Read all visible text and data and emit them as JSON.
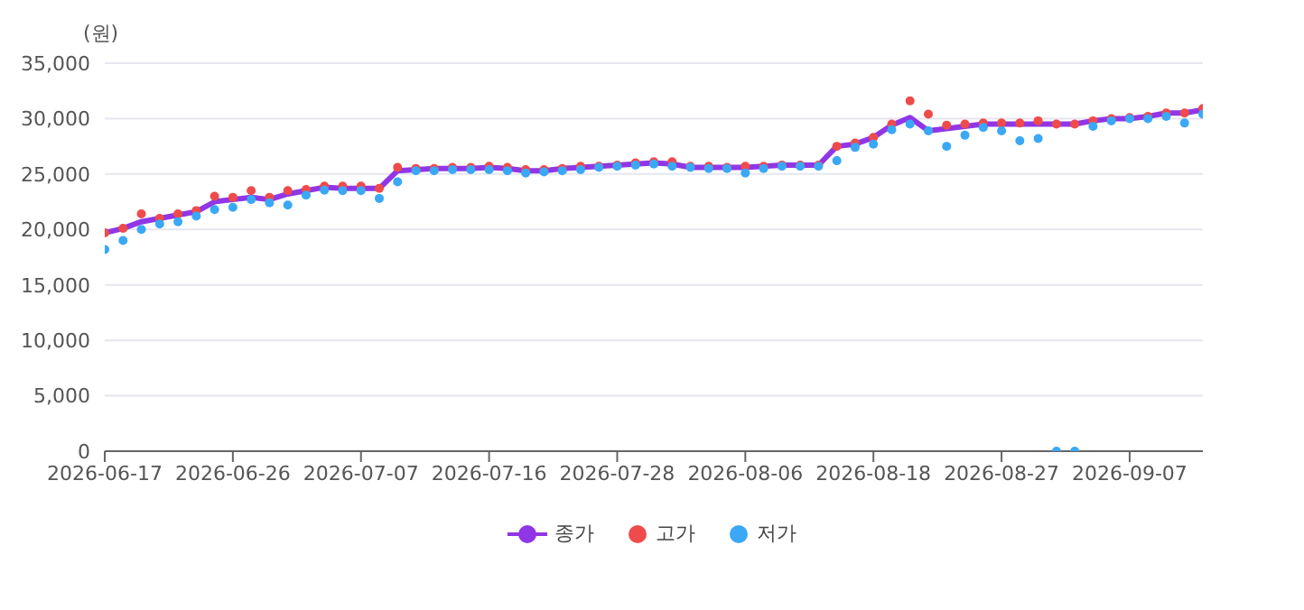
{
  "chart_data": {
    "type": "line",
    "ylabel": "(원)",
    "categories": [
      "2026-06-17",
      null,
      null,
      null,
      null,
      null,
      null,
      "2026-06-26",
      null,
      null,
      null,
      null,
      null,
      null,
      "2026-07-07",
      null,
      null,
      null,
      null,
      null,
      null,
      "2026-07-16",
      null,
      null,
      null,
      null,
      null,
      null,
      "2026-07-28",
      null,
      null,
      null,
      null,
      null,
      null,
      "2026-08-06",
      null,
      null,
      null,
      null,
      null,
      null,
      "2026-08-18",
      null,
      null,
      null,
      null,
      null,
      null,
      "2026-08-27",
      null,
      null,
      null,
      null,
      null,
      null,
      "2026-09-07",
      null,
      null,
      null,
      null
    ],
    "series": [
      {
        "name": "종가",
        "color": "#9036e6",
        "marker": "none",
        "values": [
          19700,
          20100,
          20700,
          21000,
          21300,
          21600,
          22500,
          22700,
          22900,
          22700,
          23200,
          23500,
          23800,
          23700,
          23700,
          23700,
          25300,
          25400,
          25500,
          25500,
          25500,
          25600,
          25500,
          25300,
          25300,
          25500,
          25600,
          25700,
          25800,
          25900,
          26000,
          25900,
          25600,
          25600,
          25600,
          25600,
          25700,
          25800,
          25800,
          25800,
          27500,
          27700,
          28300,
          29400,
          30100,
          28900,
          29100,
          29300,
          29500,
          29500,
          29500,
          29500,
          29500,
          29500,
          29800,
          30000,
          30000,
          30200,
          30500,
          30500,
          30800
        ]
      },
      {
        "name": "고가",
        "type": "scatter",
        "marker": "circle",
        "color": "#ef4b4b",
        "values": [
          19700,
          20100,
          21400,
          21000,
          21400,
          21700,
          23000,
          22900,
          23500,
          22900,
          23500,
          23600,
          23900,
          23900,
          23900,
          23700,
          25600,
          25500,
          25500,
          25600,
          25600,
          25700,
          25600,
          25400,
          25400,
          25500,
          25700,
          25700,
          25800,
          26000,
          26100,
          26100,
          25700,
          25700,
          25600,
          25700,
          25700,
          25800,
          25800,
          25800,
          27500,
          27800,
          28300,
          29500,
          31600,
          30400,
          29400,
          29500,
          29600,
          29600,
          29600,
          29800,
          29500,
          29500,
          29800,
          30000,
          30100,
          30200,
          30500,
          30500,
          30900
        ]
      },
      {
        "name": "저가",
        "type": "scatter",
        "marker": "circle",
        "color": "#3aa8f5",
        "values": [
          18200,
          19000,
          20000,
          20500,
          20700,
          21200,
          21800,
          22000,
          22700,
          22400,
          22200,
          23100,
          23550,
          23500,
          23500,
          22800,
          24300,
          25300,
          25300,
          25400,
          25400,
          25400,
          25300,
          25100,
          25200,
          25300,
          25400,
          25600,
          25700,
          25800,
          25900,
          25700,
          25600,
          25500,
          25500,
          25100,
          25500,
          25700,
          25700,
          25700,
          26200,
          27400,
          27700,
          29000,
          29500,
          28900,
          27500,
          28500,
          29200,
          28900,
          28000,
          28200,
          0,
          0,
          29300,
          29800,
          30000,
          30000,
          30200,
          29600,
          30400
        ]
      }
    ],
    "ylim": [
      0,
      35000
    ],
    "yticks": [
      {
        "value": 0,
        "label": "0"
      },
      {
        "value": 5000,
        "label": "5,000"
      },
      {
        "value": 10000,
        "label": "10,000"
      },
      {
        "value": 15000,
        "label": "15,000"
      },
      {
        "value": 20000,
        "label": "20,000"
      },
      {
        "value": 25000,
        "label": "25,000"
      },
      {
        "value": 30000,
        "label": "30,000"
      },
      {
        "value": 35000,
        "label": "35,000"
      }
    ],
    "grid": "y",
    "legend": "bottom"
  }
}
